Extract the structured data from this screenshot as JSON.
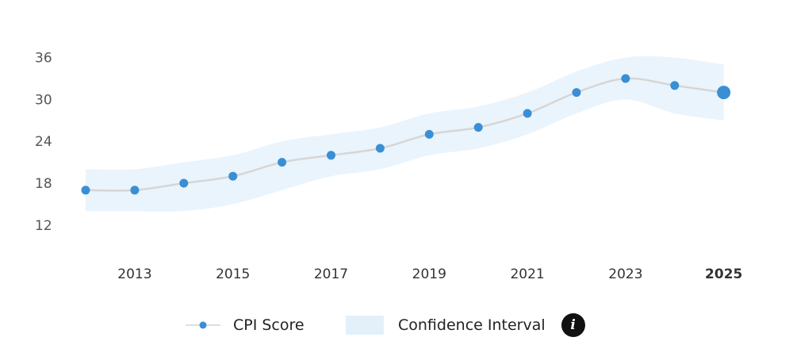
{
  "chart_data": {
    "type": "line",
    "title": "",
    "xlabel": "",
    "ylabel": "",
    "x": [
      2012,
      2013,
      2014,
      2015,
      2016,
      2017,
      2018,
      2019,
      2020,
      2021,
      2022,
      2023,
      2024,
      2025
    ],
    "x_tick_labels": [
      "2013",
      "2015",
      "2017",
      "2019",
      "2021",
      "2023",
      "2025"
    ],
    "highlighted_x_tick": "2025",
    "y_ticks": [
      12,
      18,
      24,
      30,
      36
    ],
    "ylim": [
      12,
      36
    ],
    "grid": false,
    "series": [
      {
        "name": "CPI Score",
        "values": [
          17,
          17,
          18,
          19,
          21,
          22,
          23,
          25,
          26,
          28,
          31,
          33,
          32,
          31
        ]
      },
      {
        "name": "Confidence Interval",
        "upper": [
          20,
          20,
          21,
          22,
          24,
          25,
          26,
          28,
          29,
          31,
          34,
          36,
          36,
          35
        ],
        "lower": [
          14,
          14,
          14,
          15,
          17,
          19,
          20,
          22,
          23,
          25,
          28,
          30,
          28,
          27
        ]
      }
    ],
    "legend_position": "bottom",
    "legend": {
      "cpi_label": "CPI Score",
      "ci_label": "Confidence Interval",
      "info_label": "i"
    },
    "colors": {
      "point": "#3a8fd4",
      "line": "#d6d6d6",
      "band": "#eaf4fc"
    }
  }
}
